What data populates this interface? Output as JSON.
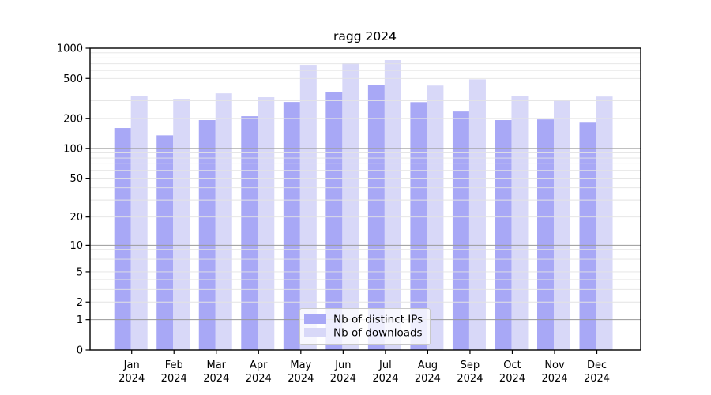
{
  "chart_data": {
    "type": "bar",
    "title": "ragg 2024",
    "year": "2024",
    "categories": [
      "Jan",
      "Feb",
      "Mar",
      "Apr",
      "May",
      "Jun",
      "Jul",
      "Aug",
      "Sep",
      "Oct",
      "Nov",
      "Dec"
    ],
    "series": [
      {
        "name": "Nb of distinct IPs",
        "color": "#a8a8f6",
        "values": [
          160,
          135,
          192,
          210,
          291,
          368,
          434,
          290,
          234,
          192,
          195,
          181
        ]
      },
      {
        "name": "Nb of downloads",
        "color": "#d8d8f8",
        "values": [
          337,
          313,
          355,
          325,
          683,
          709,
          762,
          425,
          490,
          336,
          300,
          330
        ]
      }
    ],
    "yticks": [
      0,
      1,
      2,
      5,
      10,
      20,
      50,
      100,
      200,
      500,
      1000
    ],
    "ylim": [
      0,
      1000
    ],
    "yscale": "log10(1+x)",
    "grid": "horizontal, minor lines light gray at 2-9 multiples, darker gray at powers of 10, drawn over bars",
    "legend_position": "bottom-center",
    "colors": {
      "frame": "#000000",
      "major_gridline": "#9a9a9a",
      "minor_gridline": "#e3e3e3",
      "legend_border": "#c8c8c8"
    }
  }
}
